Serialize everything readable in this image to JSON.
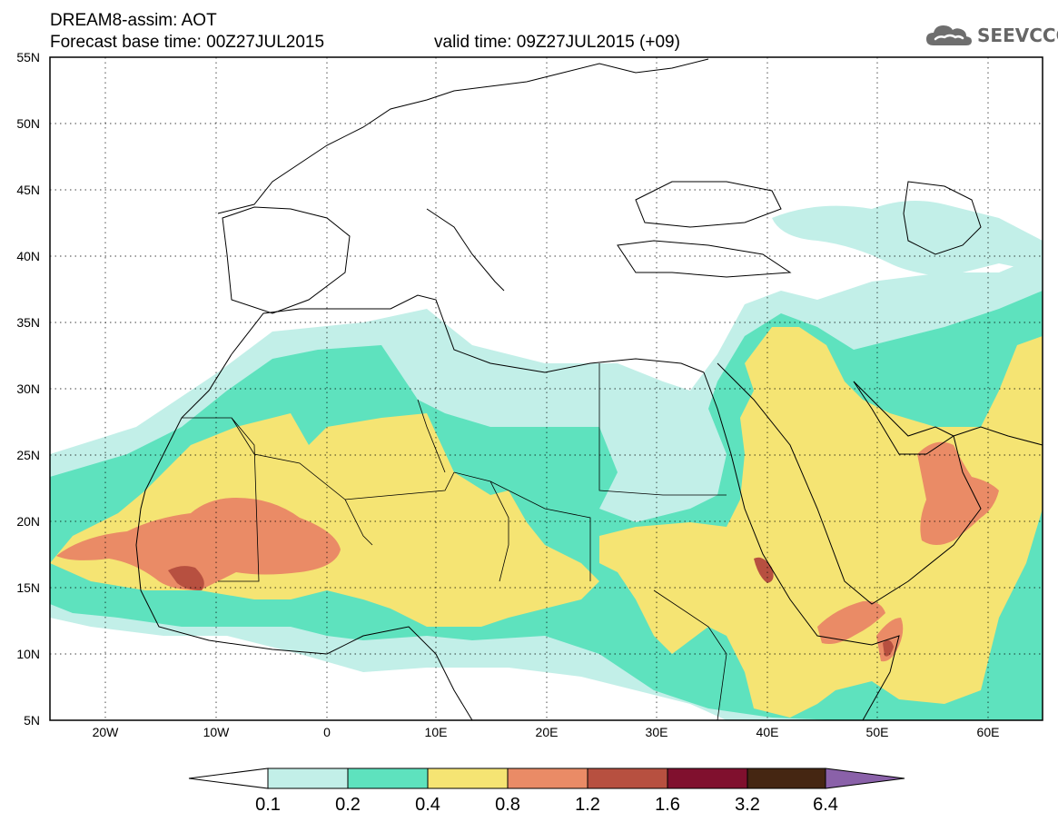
{
  "header": {
    "line1": "DREAM8-assim: AOT",
    "line2_left": "Forecast base time: 00Z27JUL2015",
    "line2_right": "valid time: 09Z27JUL2015 (+09)"
  },
  "logo": {
    "text": "SEEVCCC",
    "icon": "cloud-icon"
  },
  "axes": {
    "lat_labels": [
      "55N",
      "50N",
      "45N",
      "40N",
      "35N",
      "30N",
      "25N",
      "20N",
      "15N",
      "10N",
      "5N"
    ],
    "lon_labels": [
      "20W",
      "10W",
      "0",
      "10E",
      "20E",
      "30E",
      "40E",
      "50E",
      "60E"
    ]
  },
  "colorbar": {
    "labels": [
      "0.1",
      "0.2",
      "0.4",
      "0.8",
      "1.2",
      "1.6",
      "3.2",
      "6.4"
    ],
    "colors": [
      "#ffffff",
      "#c2efe8",
      "#5ee2be",
      "#f5e473",
      "#ea8b66",
      "#b75040",
      "#80102e",
      "#452612",
      "#8a61a9"
    ]
  }
}
